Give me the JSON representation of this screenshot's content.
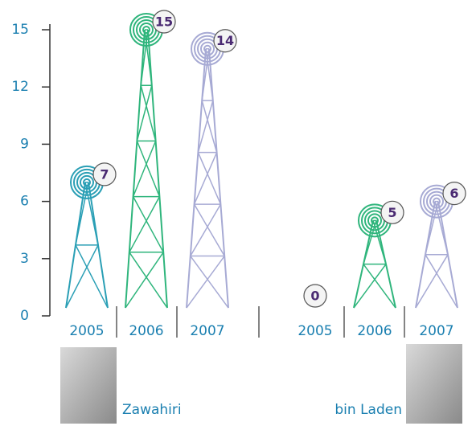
{
  "chart_data": {
    "type": "tower",
    "ylim": [
      0,
      15
    ],
    "yticks": [
      0,
      3,
      6,
      9,
      12,
      15
    ],
    "colors": [
      "#2a9fb5",
      "#2fb57c",
      "#a7aad4"
    ],
    "groups": [
      {
        "name": "Zawahiri",
        "categories": [
          "2005",
          "2006",
          "2007"
        ],
        "values": [
          7,
          15,
          14
        ]
      },
      {
        "name": "bin Laden",
        "categories": [
          "2005",
          "2006",
          "2007"
        ],
        "values": [
          0,
          5,
          6
        ]
      }
    ]
  }
}
